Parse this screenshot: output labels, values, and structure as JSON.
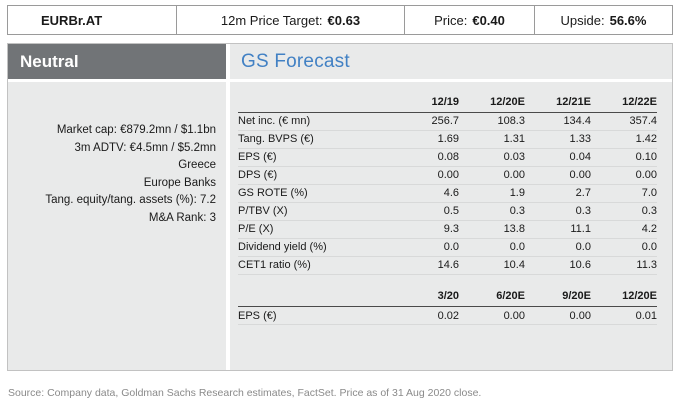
{
  "header": {
    "ticker": "EURBr.AT",
    "price_target_label": "12m Price Target:",
    "price_target_value": "€0.63",
    "price_label": "Price:",
    "price_value": "€0.40",
    "upside_label": "Upside:",
    "upside_value": "56.6%"
  },
  "sidebar": {
    "rating": "Neutral",
    "items": [
      "Market cap: €879.2mn / $1.1bn",
      "3m ADTV: €4.5mn / $5.2mn",
      "Greece",
      "Europe Banks",
      "Tang. equity/tang. assets (%): 7.2",
      "M&A Rank: 3"
    ]
  },
  "forecast": {
    "title": "GS Forecast",
    "annual_table": {
      "columns": [
        "12/19",
        "12/20E",
        "12/21E",
        "12/22E"
      ],
      "rows": [
        {
          "label": "Net inc. (€ mn)",
          "values": [
            "256.7",
            "108.3",
            "134.4",
            "357.4"
          ]
        },
        {
          "label": "Tang. BVPS (€)",
          "values": [
            "1.69",
            "1.31",
            "1.33",
            "1.42"
          ]
        },
        {
          "label": "EPS (€)",
          "values": [
            "0.08",
            "0.03",
            "0.04",
            "0.10"
          ]
        },
        {
          "label": "DPS (€)",
          "values": [
            "0.00",
            "0.00",
            "0.00",
            "0.00"
          ]
        },
        {
          "label": "GS ROTE (%)",
          "values": [
            "4.6",
            "1.9",
            "2.7",
            "7.0"
          ]
        },
        {
          "label": "P/TBV (X)",
          "values": [
            "0.5",
            "0.3",
            "0.3",
            "0.3"
          ]
        },
        {
          "label": "P/E (X)",
          "values": [
            "9.3",
            "13.8",
            "11.1",
            "4.2"
          ]
        },
        {
          "label": "Dividend yield (%)",
          "values": [
            "0.0",
            "0.0",
            "0.0",
            "0.0"
          ]
        },
        {
          "label": "CET1 ratio (%)",
          "values": [
            "14.6",
            "10.4",
            "10.6",
            "11.3"
          ]
        }
      ]
    },
    "quarterly_table": {
      "columns": [
        "3/20",
        "6/20E",
        "9/20E",
        "12/20E"
      ],
      "rows": [
        {
          "label": "EPS (€)",
          "values": [
            "0.02",
            "0.00",
            "0.00",
            "0.01"
          ]
        }
      ]
    }
  },
  "footer": {
    "source": "Source: Company data, Goldman Sachs Research estimates, FactSet. Price as of 31 Aug 2020 close."
  },
  "colors": {
    "accent_blue": "#4281c4",
    "rating_bg": "#717477",
    "panel_bg": "#e9eaea",
    "border_gray": "#9a9a9a"
  }
}
